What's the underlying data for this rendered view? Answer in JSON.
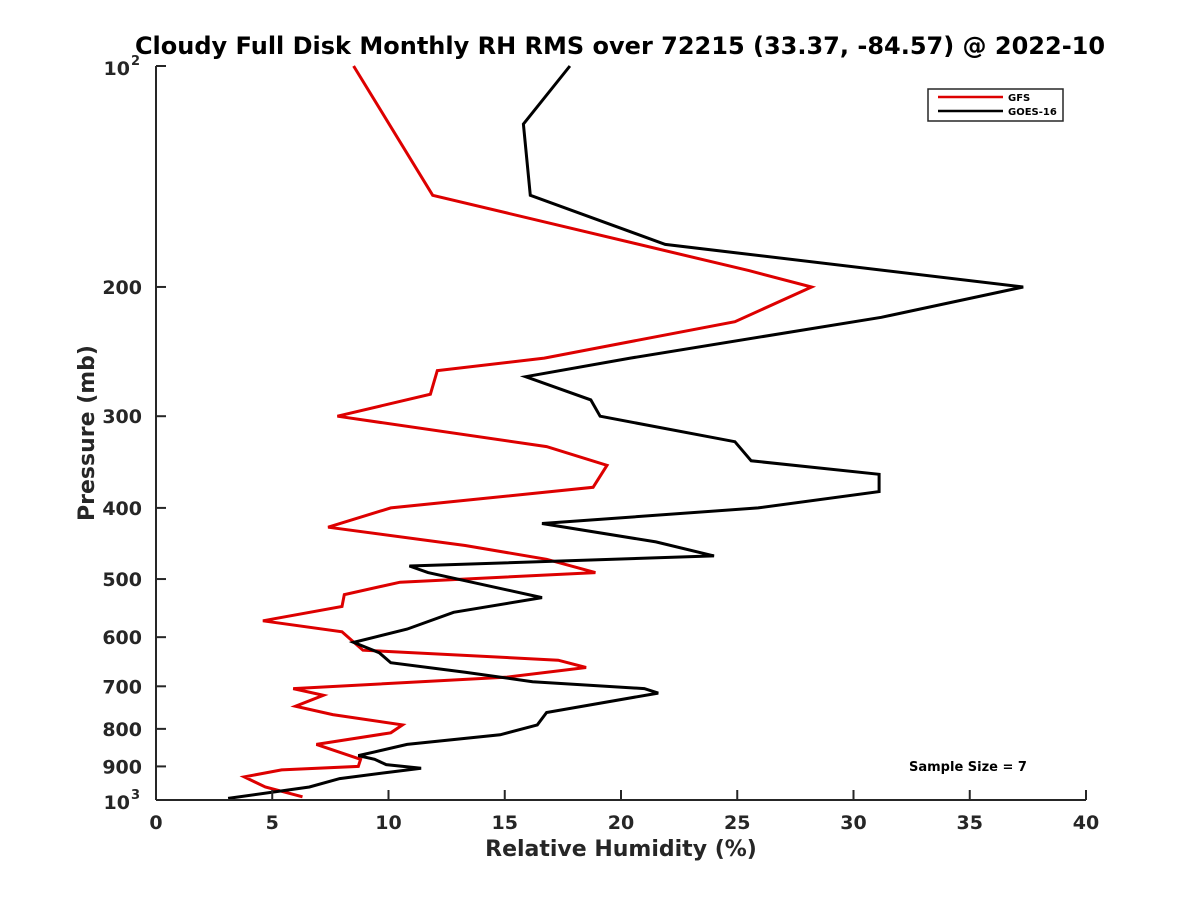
{
  "chart_data": {
    "type": "line",
    "title": "Cloudy Full Disk Monthly RH RMS over 72215 (33.37, -84.57) @ 2022-10",
    "xlabel": "Relative Humidity (%)",
    "ylabel": "Pressure (mb)",
    "xlim": [
      0,
      40
    ],
    "ylim": [
      100,
      1000
    ],
    "y_scale": "log",
    "y_reversed": true,
    "grid": false,
    "legend_position": "top-right",
    "x_ticks": [
      "0",
      "5",
      "10",
      "15",
      "20",
      "25",
      "30",
      "35",
      "40"
    ],
    "y_ticks": [
      {
        "value": 100,
        "base": "10",
        "exp": "2"
      },
      {
        "value": 200,
        "label": "200"
      },
      {
        "value": 300,
        "label": "300"
      },
      {
        "value": 400,
        "label": "400"
      },
      {
        "value": 500,
        "label": "500"
      },
      {
        "value": 600,
        "label": "600"
      },
      {
        "value": 700,
        "label": "700"
      },
      {
        "value": 800,
        "label": "800"
      },
      {
        "value": 900,
        "label": "900"
      },
      {
        "value": 1000,
        "base": "10",
        "exp": "3"
      }
    ],
    "series": [
      {
        "name": "GFS",
        "color": "#dd0000",
        "points": [
          [
            8.5,
            100
          ],
          [
            11.9,
            150
          ],
          [
            25.5,
            190
          ],
          [
            28.2,
            200
          ],
          [
            24.9,
            223
          ],
          [
            16.7,
            250
          ],
          [
            12.1,
            260
          ],
          [
            11.8,
            280
          ],
          [
            7.8,
            300
          ],
          [
            16.8,
            330
          ],
          [
            19.4,
            350
          ],
          [
            18.8,
            375
          ],
          [
            10.1,
            400
          ],
          [
            7.4,
            425
          ],
          [
            13.3,
            450
          ],
          [
            16.8,
            470
          ],
          [
            18.9,
            490
          ],
          [
            10.5,
            505
          ],
          [
            8.1,
            525
          ],
          [
            8.0,
            545
          ],
          [
            4.6,
            570
          ],
          [
            8.0,
            590
          ],
          [
            8.9,
            625
          ],
          [
            17.3,
            645
          ],
          [
            18.5,
            660
          ],
          [
            15.1,
            680
          ],
          [
            5.9,
            705
          ],
          [
            7.2,
            720
          ],
          [
            6.0,
            745
          ],
          [
            7.6,
            765
          ],
          [
            10.6,
            790
          ],
          [
            10.1,
            810
          ],
          [
            6.9,
            840
          ],
          [
            8.8,
            880
          ],
          [
            8.7,
            900
          ],
          [
            5.4,
            910
          ],
          [
            3.8,
            930
          ],
          [
            4.7,
            960
          ],
          [
            6.3,
            990
          ]
        ]
      },
      {
        "name": "GOES-16",
        "color": "#000000",
        "points": [
          [
            17.8,
            100
          ],
          [
            15.8,
            120
          ],
          [
            16.1,
            150
          ],
          [
            21.9,
            175
          ],
          [
            37.3,
            200
          ],
          [
            31.2,
            220
          ],
          [
            20.4,
            250
          ],
          [
            15.9,
            265
          ],
          [
            18.7,
            285
          ],
          [
            19.1,
            300
          ],
          [
            24.9,
            325
          ],
          [
            25.6,
            345
          ],
          [
            31.1,
            360
          ],
          [
            31.1,
            380
          ],
          [
            25.9,
            400
          ],
          [
            16.6,
            420
          ],
          [
            21.5,
            445
          ],
          [
            24.0,
            465
          ],
          [
            10.9,
            480
          ],
          [
            11.7,
            490
          ],
          [
            16.6,
            530
          ],
          [
            12.8,
            555
          ],
          [
            10.8,
            585
          ],
          [
            8.5,
            610
          ],
          [
            9.6,
            630
          ],
          [
            10.1,
            650
          ],
          [
            13.3,
            670
          ],
          [
            16.2,
            690
          ],
          [
            21.0,
            705
          ],
          [
            21.6,
            715
          ],
          [
            16.8,
            760
          ],
          [
            16.4,
            790
          ],
          [
            14.8,
            815
          ],
          [
            10.8,
            840
          ],
          [
            9.4,
            860
          ],
          [
            8.7,
            870
          ],
          [
            9.4,
            880
          ],
          [
            9.9,
            895
          ],
          [
            11.4,
            905
          ],
          [
            10.2,
            915
          ],
          [
            7.9,
            935
          ],
          [
            6.6,
            960
          ],
          [
            3.1,
            995
          ]
        ]
      }
    ],
    "legend": [
      "GFS",
      "GOES-16"
    ],
    "annotation": "Sample Size = 7"
  }
}
